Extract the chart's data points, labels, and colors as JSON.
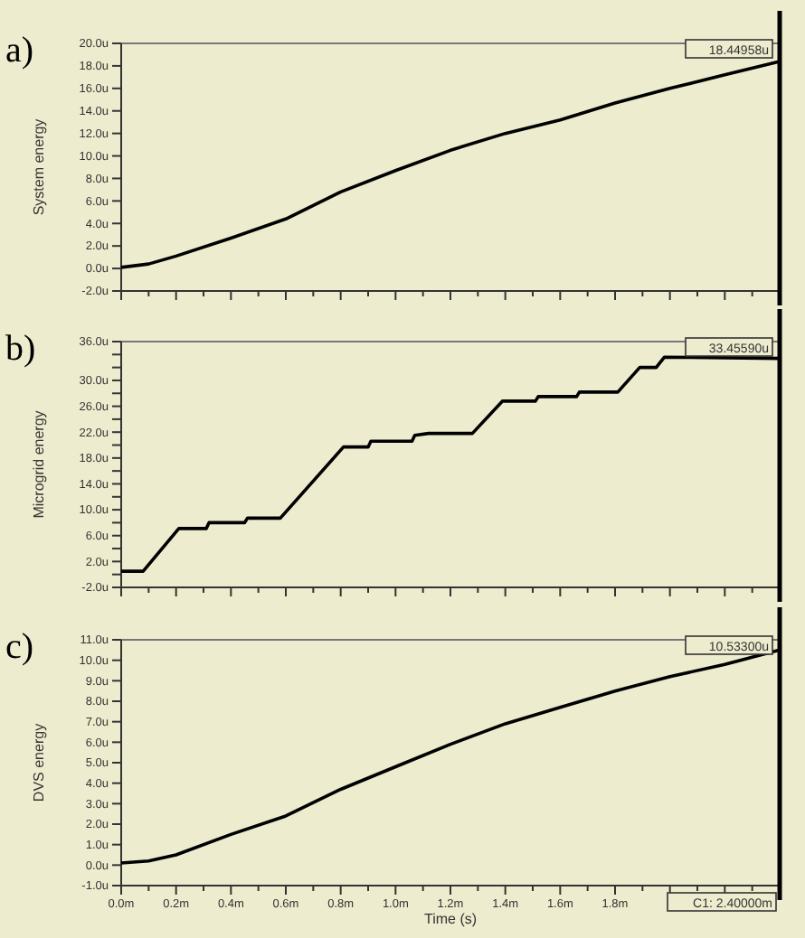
{
  "chart_data": [
    {
      "type": "line",
      "title": "a)",
      "ylabel": "System energy",
      "x": [
        0,
        0.1,
        0.2,
        0.4,
        0.6,
        0.8,
        1.0,
        1.2,
        1.4,
        1.6,
        1.8,
        2.0,
        2.2,
        2.4
      ],
      "series": [
        {
          "color": "#000000",
          "values": [
            0.1,
            0.4,
            1.1,
            2.7,
            4.4,
            6.8,
            8.7,
            10.5,
            12.0,
            13.2,
            14.7,
            16.0,
            17.2,
            18.4
          ]
        }
      ],
      "xlim": [
        0,
        2.4
      ],
      "xticks": [
        {
          "value": 0,
          "label": null
        },
        {
          "value": 0.1,
          "label": null
        },
        {
          "value": 0.2,
          "label": null
        },
        {
          "value": 0.3,
          "label": null
        },
        {
          "value": 0.4,
          "label": null
        },
        {
          "value": 0.5,
          "label": null
        },
        {
          "value": 0.6,
          "label": null
        },
        {
          "value": 0.7,
          "label": null
        },
        {
          "value": 0.8,
          "label": null
        },
        {
          "value": 0.9,
          "label": null
        },
        {
          "value": 1.0,
          "label": null
        },
        {
          "value": 1.1,
          "label": null
        },
        {
          "value": 1.2,
          "label": null
        },
        {
          "value": 1.3,
          "label": null
        },
        {
          "value": 1.4,
          "label": null
        },
        {
          "value": 1.5,
          "label": null
        },
        {
          "value": 1.6,
          "label": null
        },
        {
          "value": 1.7,
          "label": null
        },
        {
          "value": 1.8,
          "label": null
        },
        {
          "value": 1.9,
          "label": null
        },
        {
          "value": 2.0,
          "label": null
        },
        {
          "value": 2.1,
          "label": null
        },
        {
          "value": 2.2,
          "label": null
        },
        {
          "value": 2.3,
          "label": null
        }
      ],
      "ylim": [
        -2,
        20
      ],
      "yticks": [
        {
          "value": -2,
          "label": "-2.0u"
        },
        {
          "value": 0,
          "label": "0.0u"
        },
        {
          "value": 2,
          "label": "2.0u"
        },
        {
          "value": 4,
          "label": "4.0u"
        },
        {
          "value": 6,
          "label": "6.0u"
        },
        {
          "value": 8,
          "label": "8.0u"
        },
        {
          "value": 10,
          "label": "10.0u"
        },
        {
          "value": 12,
          "label": "12.0u"
        },
        {
          "value": 14,
          "label": "14.0u"
        },
        {
          "value": 16,
          "label": "16.0u"
        },
        {
          "value": 18,
          "label": "18.0u"
        },
        {
          "value": 20,
          "label": "20.0u"
        }
      ],
      "tick_labels": "y",
      "grid": false,
      "ref_lines": [
        {
          "axis": "x",
          "value": 2.4,
          "color": "#000000"
        }
      ],
      "annotations": [
        "18.44958u"
      ]
    },
    {
      "type": "line",
      "title": "b)",
      "ylabel": "Microgrid energy",
      "x": [
        0,
        0.08,
        0.21,
        0.31,
        0.32,
        0.45,
        0.46,
        0.58,
        0.81,
        0.9,
        0.91,
        1.06,
        1.07,
        1.12,
        1.28,
        1.39,
        1.51,
        1.52,
        1.66,
        1.67,
        1.81,
        1.89,
        1.95,
        1.98,
        2.4
      ],
      "series": [
        {
          "color": "#000000",
          "values": [
            0.5,
            0.5,
            7.1,
            7.1,
            8.0,
            8.0,
            8.7,
            8.7,
            19.7,
            19.7,
            20.6,
            20.6,
            21.5,
            21.8,
            21.8,
            26.8,
            26.8,
            27.5,
            27.5,
            28.2,
            28.2,
            32.0,
            32.0,
            33.6,
            33.4
          ]
        }
      ],
      "xlim": [
        0,
        2.4
      ],
      "xticks": [
        {
          "value": 0,
          "label": null
        },
        {
          "value": 0.1,
          "label": null
        },
        {
          "value": 0.2,
          "label": null
        },
        {
          "value": 0.3,
          "label": null
        },
        {
          "value": 0.4,
          "label": null
        },
        {
          "value": 0.5,
          "label": null
        },
        {
          "value": 0.6,
          "label": null
        },
        {
          "value": 0.7,
          "label": null
        },
        {
          "value": 0.8,
          "label": null
        },
        {
          "value": 0.9,
          "label": null
        },
        {
          "value": 1.0,
          "label": null
        },
        {
          "value": 1.1,
          "label": null
        },
        {
          "value": 1.2,
          "label": null
        },
        {
          "value": 1.3,
          "label": null
        },
        {
          "value": 1.4,
          "label": null
        },
        {
          "value": 1.5,
          "label": null
        },
        {
          "value": 1.6,
          "label": null
        },
        {
          "value": 1.7,
          "label": null
        },
        {
          "value": 1.8,
          "label": null
        },
        {
          "value": 1.9,
          "label": null
        },
        {
          "value": 2.0,
          "label": null
        },
        {
          "value": 2.1,
          "label": null
        },
        {
          "value": 2.2,
          "label": null
        },
        {
          "value": 2.3,
          "label": null
        }
      ],
      "ylim": [
        -2,
        36
      ],
      "yticks": [
        {
          "value": -2,
          "label": "-2.0u"
        },
        {
          "value": 0,
          "label": null
        },
        {
          "value": 2,
          "label": "2.0u"
        },
        {
          "value": 4,
          "label": null
        },
        {
          "value": 6,
          "label": "6.0u"
        },
        {
          "value": 8,
          "label": null
        },
        {
          "value": 10,
          "label": "10.0u"
        },
        {
          "value": 12,
          "label": null
        },
        {
          "value": 14,
          "label": "14.0u"
        },
        {
          "value": 16,
          "label": null
        },
        {
          "value": 18,
          "label": "18.0u"
        },
        {
          "value": 20,
          "label": null
        },
        {
          "value": 22,
          "label": "22.0u"
        },
        {
          "value": 24,
          "label": null
        },
        {
          "value": 26,
          "label": "26.0u"
        },
        {
          "value": 28,
          "label": null
        },
        {
          "value": 30,
          "label": "30.0u"
        },
        {
          "value": 32,
          "label": null
        },
        {
          "value": 34,
          "label": null
        },
        {
          "value": 36,
          "label": "36.0u"
        }
      ],
      "tick_labels": "y",
      "grid": false,
      "ref_lines": [
        {
          "axis": "x",
          "value": 2.4,
          "color": "#000000"
        }
      ],
      "annotations": [
        "33.45590u"
      ]
    },
    {
      "type": "line",
      "title": "c)",
      "xlabel": "Time (s)",
      "ylabel": "DVS energy",
      "x": [
        0,
        0.1,
        0.2,
        0.4,
        0.6,
        0.8,
        1.0,
        1.2,
        1.4,
        1.6,
        1.8,
        2.0,
        2.2,
        2.4
      ],
      "series": [
        {
          "color": "#000000",
          "values": [
            0.1,
            0.2,
            0.5,
            1.5,
            2.4,
            3.7,
            4.8,
            5.9,
            6.9,
            7.7,
            8.5,
            9.2,
            9.8,
            10.5
          ]
        }
      ],
      "xlim": [
        0,
        2.4
      ],
      "xticks": [
        {
          "value": 0,
          "label": "0.0m"
        },
        {
          "value": 0.1,
          "label": null
        },
        {
          "value": 0.2,
          "label": "0.2m"
        },
        {
          "value": 0.3,
          "label": null
        },
        {
          "value": 0.4,
          "label": "0.4m"
        },
        {
          "value": 0.5,
          "label": null
        },
        {
          "value": 0.6,
          "label": "0.6m"
        },
        {
          "value": 0.7,
          "label": null
        },
        {
          "value": 0.8,
          "label": "0.8m"
        },
        {
          "value": 0.9,
          "label": null
        },
        {
          "value": 1.0,
          "label": "1.0m"
        },
        {
          "value": 1.1,
          "label": null
        },
        {
          "value": 1.2,
          "label": "1.2m"
        },
        {
          "value": 1.3,
          "label": null
        },
        {
          "value": 1.4,
          "label": "1.4m"
        },
        {
          "value": 1.5,
          "label": null
        },
        {
          "value": 1.6,
          "label": "1.6m"
        },
        {
          "value": 1.7,
          "label": null
        },
        {
          "value": 1.8,
          "label": "1.8m"
        },
        {
          "value": 1.9,
          "label": null
        },
        {
          "value": 2.0,
          "label": null
        },
        {
          "value": 2.1,
          "label": null
        },
        {
          "value": 2.2,
          "label": null
        },
        {
          "value": 2.3,
          "label": null
        }
      ],
      "ylim": [
        -1,
        11
      ],
      "yticks": [
        {
          "value": -1,
          "label": "-1.0u"
        },
        {
          "value": 0,
          "label": "0.0u"
        },
        {
          "value": 1,
          "label": "1.0u"
        },
        {
          "value": 2,
          "label": "2.0u"
        },
        {
          "value": 3,
          "label": "3.0u"
        },
        {
          "value": 4,
          "label": "4.0u"
        },
        {
          "value": 5,
          "label": "5.0u"
        },
        {
          "value": 6,
          "label": "6.0u"
        },
        {
          "value": 7,
          "label": "7.0u"
        },
        {
          "value": 8,
          "label": "8.0u"
        },
        {
          "value": 9,
          "label": "9.0u"
        },
        {
          "value": 10,
          "label": "10.0u"
        },
        {
          "value": 11,
          "label": "11.0u"
        }
      ],
      "grid": false,
      "ref_lines": [
        {
          "axis": "x",
          "value": 2.4,
          "color": "#000000",
          "label": "C1: 2.40000m"
        }
      ],
      "annotations": [
        "10.53300u"
      ]
    }
  ]
}
